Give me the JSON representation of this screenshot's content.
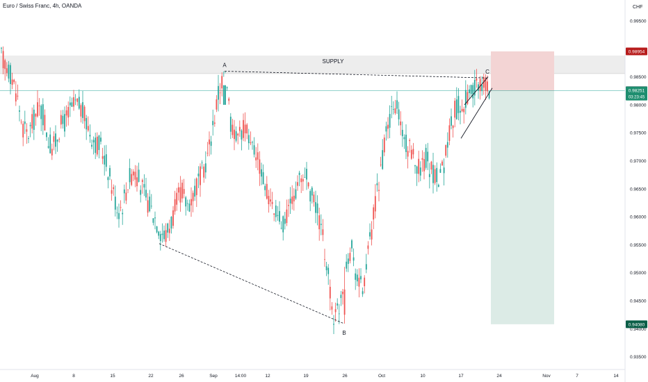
{
  "header": {
    "symbol_title": "Euro / Swiss Franc, 4h, OANDA"
  },
  "chart_data": {
    "type": "candlestick",
    "title": "Euro / Swiss Franc, 4h, OANDA",
    "currency_label": "CHF",
    "ylim": [
      0.933,
      0.9985
    ],
    "y_ticks": [
      "0.99500",
      "0.99000",
      "0.98500",
      "0.98000",
      "0.97500",
      "0.97000",
      "0.96500",
      "0.96000",
      "0.95500",
      "0.95000",
      "0.94500",
      "0.94000",
      "0.93500"
    ],
    "x_ticks": [
      "Aug",
      "8",
      "15",
      "22",
      "26",
      "Sep",
      "14:00",
      "12",
      "19",
      "26",
      "Oct",
      "10",
      "17",
      "24",
      "Nov",
      "7",
      "14"
    ],
    "price_path": [
      [
        0.9885,
        0.987,
        0.985,
        0.9815,
        0.976,
        0.9745,
        0.977,
        0.9795,
        0.978,
        0.973,
        0.9725,
        0.976,
        0.977,
        0.979,
        0.98,
        0.9795,
        0.977,
        0.9745,
        0.973,
        0.972,
        0.969,
        0.965,
        0.961,
        0.9625,
        0.9665,
        0.9685,
        0.9665,
        0.964,
        0.962,
        0.96,
        0.9575,
        0.9565,
        0.959,
        0.962,
        0.965,
        0.962,
        0.9635,
        0.966,
        0.968,
        0.971,
        0.9765,
        0.982,
        0.9855
      ],
      [
        0.9855,
        0.976,
        0.974,
        0.976,
        0.9745,
        0.972,
        0.969,
        0.965,
        0.962,
        0.96,
        0.959,
        0.961,
        0.964,
        0.9665,
        0.9675,
        0.964,
        0.961,
        0.956,
        0.949,
        0.9415,
        0.9445,
        0.952,
        0.9545,
        0.949,
        0.947,
        0.954,
        0.961,
        0.968,
        0.974,
        0.9785,
        0.9795,
        0.974,
        0.972,
        0.97,
        0.969,
        0.9705,
        0.968,
        0.967,
        0.969,
        0.975,
        0.979,
        0.98,
        0.981,
        0.982,
        0.983,
        0.984,
        0.9826
      ]
    ],
    "supply_zone": {
      "label": "SUPPLY",
      "from": 0.98558,
      "to": 0.9888
    },
    "current_level": 0.98251,
    "points": [
      {
        "label": "A",
        "x": "Sep 1",
        "y": 0.986
      },
      {
        "label": "B",
        "x": "Sep 26",
        "y": 0.9409
      },
      {
        "label": "C",
        "x": "Oct 20",
        "y": 0.9848
      }
    ],
    "trade": {
      "stop": 0.98954,
      "entry": 0.98251,
      "target": 0.9408
    },
    "price_tags": [
      {
        "value": "0.98954",
        "color": "#b71c1c"
      },
      {
        "value": "0.98262",
        "color": "#787b86"
      },
      {
        "value": "0.98251",
        "sub": "03:23:45",
        "color": "#1e8e6f"
      },
      {
        "value": "0.94080",
        "color": "#0b5e47"
      }
    ],
    "colors": {
      "up": "#26a69a",
      "down": "#ef5350",
      "stop_zone": "#f3d4d4",
      "target_zone": "#dcebe6",
      "supply": "#ededed",
      "current_line": "#26a69a"
    }
  }
}
